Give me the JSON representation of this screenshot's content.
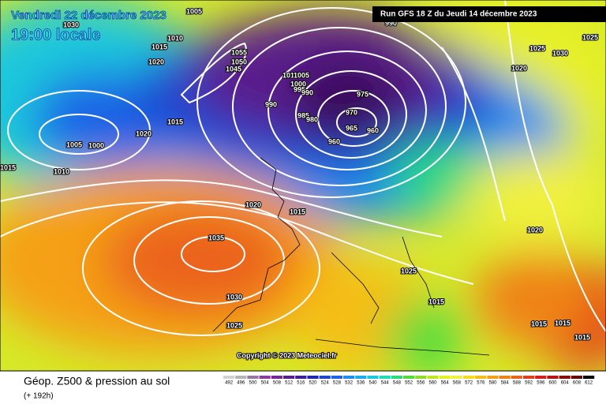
{
  "header": {
    "date": "Vendredi 22 décembre 2023",
    "time": "19:00 locale",
    "run": "Run GFS 18 Z du Jeudi 14 décembre 2023"
  },
  "map": {
    "isobar_labels": [
      "1005",
      "990",
      "1030",
      "1025",
      "1010",
      "1015",
      "1020",
      "1055",
      "1050",
      "1045",
      "1025",
      "1030",
      "1020",
      "1010",
      "1005",
      "1000",
      "995",
      "990",
      "975",
      "990",
      "970",
      "985",
      "980",
      "1015",
      "965",
      "960",
      "1020",
      "960",
      "1005",
      "1000",
      "1015",
      "1010",
      "1020",
      "1015",
      "1020",
      "1035",
      "1025",
      "1030",
      "1015",
      "1025",
      "1015",
      "1015",
      "1015"
    ],
    "copyright": "Copyright © 2023 Meteociel.fr"
  },
  "legend": {
    "title": "Géop. Z500 & pression au sol",
    "subtitle": "(+ 192h)",
    "scale": [
      {
        "label": "492",
        "color": "#d2d2d2"
      },
      {
        "label": "496",
        "color": "#b4b4b4"
      },
      {
        "label": "500",
        "color": "#9678a0"
      },
      {
        "label": "504",
        "color": "#8c3c9a"
      },
      {
        "label": "508",
        "color": "#782896"
      },
      {
        "label": "512",
        "color": "#5a1e8c"
      },
      {
        "label": "516",
        "color": "#3c1e96"
      },
      {
        "label": "520",
        "color": "#1e28b4"
      },
      {
        "label": "524",
        "color": "#1e46d2"
      },
      {
        "label": "528",
        "color": "#1e64e6"
      },
      {
        "label": "532",
        "color": "#1e8cf0"
      },
      {
        "label": "536",
        "color": "#1eaaf0"
      },
      {
        "label": "540",
        "color": "#1ec8dc"
      },
      {
        "label": "544",
        "color": "#1edcb4"
      },
      {
        "label": "548",
        "color": "#28dc78"
      },
      {
        "label": "552",
        "color": "#50dc3c"
      },
      {
        "label": "556",
        "color": "#8cdc28"
      },
      {
        "label": "560",
        "color": "#bee61e"
      },
      {
        "label": "564",
        "color": "#e6f01e"
      },
      {
        "label": "568",
        "color": "#f0f03c"
      },
      {
        "label": "572",
        "color": "#f5dc1e"
      },
      {
        "label": "576",
        "color": "#f5be14"
      },
      {
        "label": "580",
        "color": "#f5a014"
      },
      {
        "label": "584",
        "color": "#f08214"
      },
      {
        "label": "588",
        "color": "#eb641e"
      },
      {
        "label": "592",
        "color": "#e13c1e"
      },
      {
        "label": "596",
        "color": "#d21e1e"
      },
      {
        "label": "600",
        "color": "#b41414"
      },
      {
        "label": "604",
        "color": "#8c0a0a"
      },
      {
        "label": "608",
        "color": "#640505"
      },
      {
        "label": "612",
        "color": "#000000"
      }
    ]
  }
}
